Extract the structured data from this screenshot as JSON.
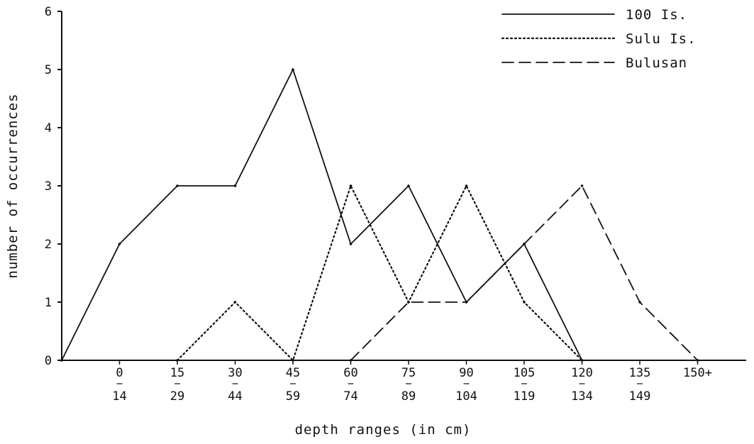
{
  "chart_data": {
    "type": "line",
    "title": "",
    "xlabel": "depth ranges (in cm)",
    "ylabel": "number of occurrences",
    "ylim": [
      0,
      6
    ],
    "yticks": [
      "0",
      "1",
      "2",
      "3",
      "4",
      "5",
      "6"
    ],
    "categories": [
      {
        "top": "",
        "bottom": ""
      },
      {
        "top": "0",
        "bottom": "14"
      },
      {
        "top": "15",
        "bottom": "29"
      },
      {
        "top": "30",
        "bottom": "44"
      },
      {
        "top": "45",
        "bottom": "59"
      },
      {
        "top": "60",
        "bottom": "74"
      },
      {
        "top": "75",
        "bottom": "89"
      },
      {
        "top": "90",
        "bottom": "104"
      },
      {
        "top": "105",
        "bottom": "119"
      },
      {
        "top": "120",
        "bottom": "134"
      },
      {
        "top": "135",
        "bottom": "149"
      },
      {
        "top": "150+",
        "bottom": ""
      }
    ],
    "series": [
      {
        "name": "100 Is.",
        "style": "solid",
        "points": [
          [
            0,
            0
          ],
          [
            1,
            2
          ],
          [
            2,
            3
          ],
          [
            3,
            3
          ],
          [
            4,
            5
          ],
          [
            5,
            2
          ],
          [
            6,
            3
          ],
          [
            7,
            1
          ],
          [
            8,
            2
          ],
          [
            9,
            0
          ]
        ]
      },
      {
        "name": "Sulu Is.",
        "style": "dotted",
        "points": [
          [
            2,
            0
          ],
          [
            3,
            1
          ],
          [
            4,
            0
          ],
          [
            5,
            3
          ],
          [
            6,
            1
          ],
          [
            7,
            3
          ],
          [
            8,
            1
          ],
          [
            9,
            0
          ]
        ]
      },
      {
        "name": "Bulusan",
        "style": "dashed",
        "points": [
          [
            5,
            0
          ],
          [
            6,
            1
          ],
          [
            7,
            1
          ],
          [
            8,
            2
          ],
          [
            9,
            3
          ],
          [
            10,
            1
          ],
          [
            11,
            0
          ]
        ]
      }
    ],
    "grid": false,
    "legend_position": "top-right",
    "colors": {
      "line": "#111111",
      "background": "#ffffff"
    }
  }
}
